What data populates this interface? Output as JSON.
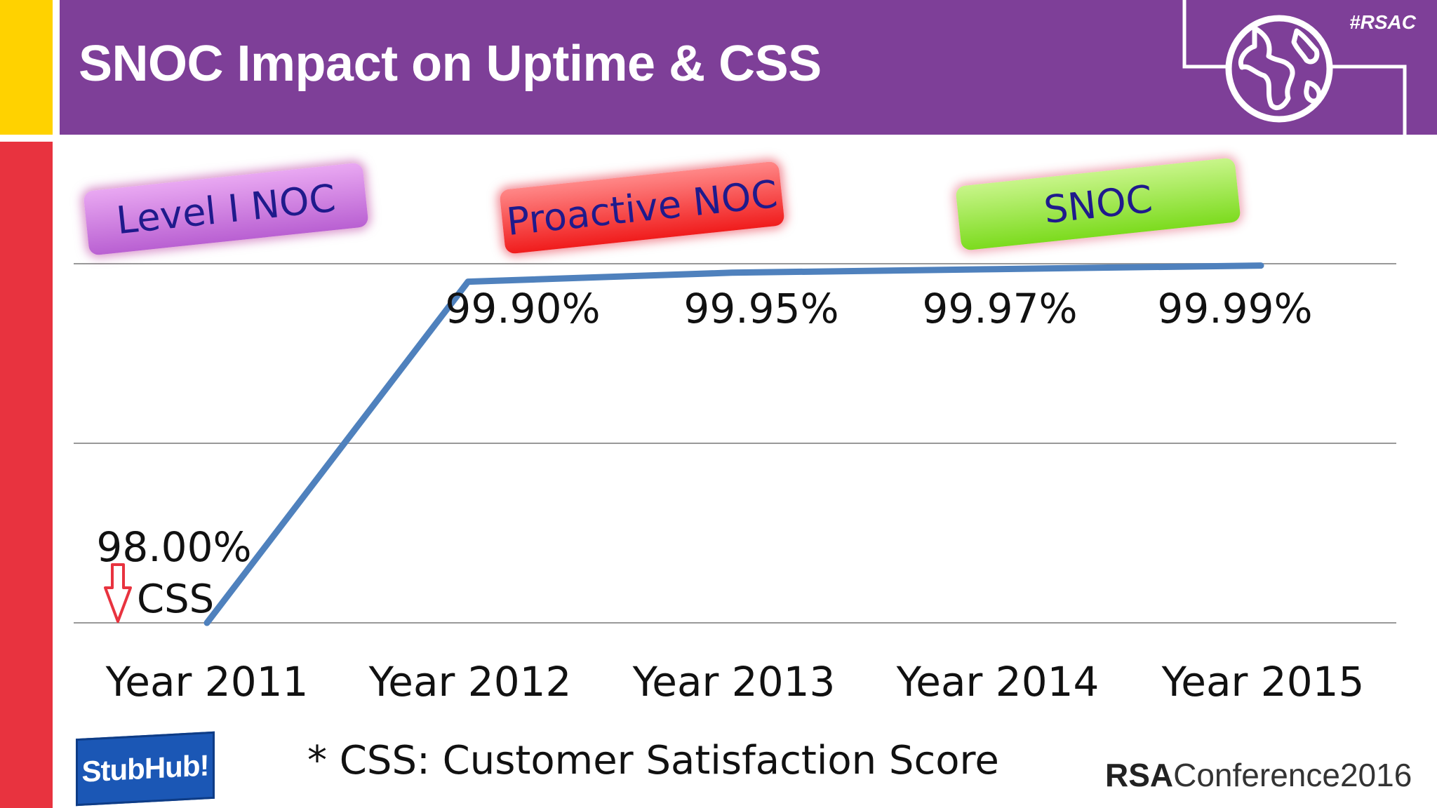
{
  "header": {
    "title": "SNOC Impact on Uptime & CSS",
    "hashtag": "#RSAC"
  },
  "phases": [
    "Level I NOC",
    "Proactive NOC",
    "SNOC"
  ],
  "css_label": "CSS",
  "footnote": "* CSS: Customer Satisfaction Score",
  "logos": {
    "stubhub": "StubHub!",
    "rsa_bold": "RSA",
    "rsa_rest": "Conference2016"
  },
  "colors": {
    "header": "#7E3F98",
    "line": "#4F81BD",
    "down_arrow": "#E8333F"
  },
  "chart_data": {
    "type": "line",
    "categories": [
      "Year 2011",
      "Year 2012",
      "Year 2013",
      "Year 2014",
      "Year 2015"
    ],
    "series": [
      {
        "values": [
          98.0,
          99.9,
          99.95,
          99.97,
          99.99
        ]
      }
    ],
    "data_labels": [
      "98.00%",
      "99.90%",
      "99.95%",
      "99.97%",
      "99.99%"
    ],
    "ylim": [
      98.0,
      100.0
    ],
    "gridlines": [
      98.0,
      99.0,
      100.0
    ],
    "grid": true,
    "legend": "none"
  }
}
